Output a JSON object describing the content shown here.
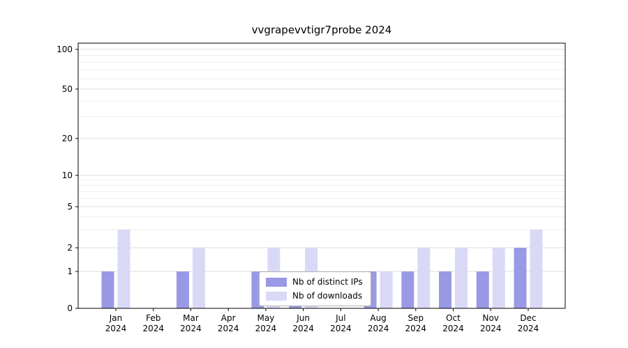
{
  "title": "vvgrapevvtigr7probe 2024",
  "chart_data": {
    "type": "bar",
    "title": "vvgrapevvtigr7probe 2024",
    "categories": [
      "Jan",
      "Feb",
      "Mar",
      "Apr",
      "May",
      "Jun",
      "Jul",
      "Aug",
      "Sep",
      "Oct",
      "Nov",
      "Dec"
    ],
    "year": "2024",
    "series": [
      {
        "name": "Nb of distinct IPs",
        "color": "#9999e6",
        "values": [
          1,
          0,
          1,
          0,
          1,
          1,
          0,
          1,
          1,
          1,
          1,
          2
        ]
      },
      {
        "name": "Nb of downloads",
        "color": "#d9d9f7",
        "values": [
          3,
          0,
          2,
          0,
          2,
          2,
          0,
          1,
          2,
          2,
          2,
          3
        ]
      }
    ],
    "yscale": "symlog",
    "ylim": [
      0,
      100
    ],
    "y_ticks": [
      0,
      1,
      2,
      5,
      10,
      20,
      50,
      100
    ],
    "minor_gridlines": [
      3,
      4,
      6,
      7,
      8,
      9,
      30,
      40,
      60,
      70,
      80,
      90
    ],
    "grid": true,
    "legend_position": "lower center",
    "xlabel": "",
    "ylabel": ""
  },
  "colors": {
    "major_grid": "#dcdcdc",
    "minor_grid": "#eeeeee",
    "spine": "#000000",
    "text": "#000000"
  }
}
